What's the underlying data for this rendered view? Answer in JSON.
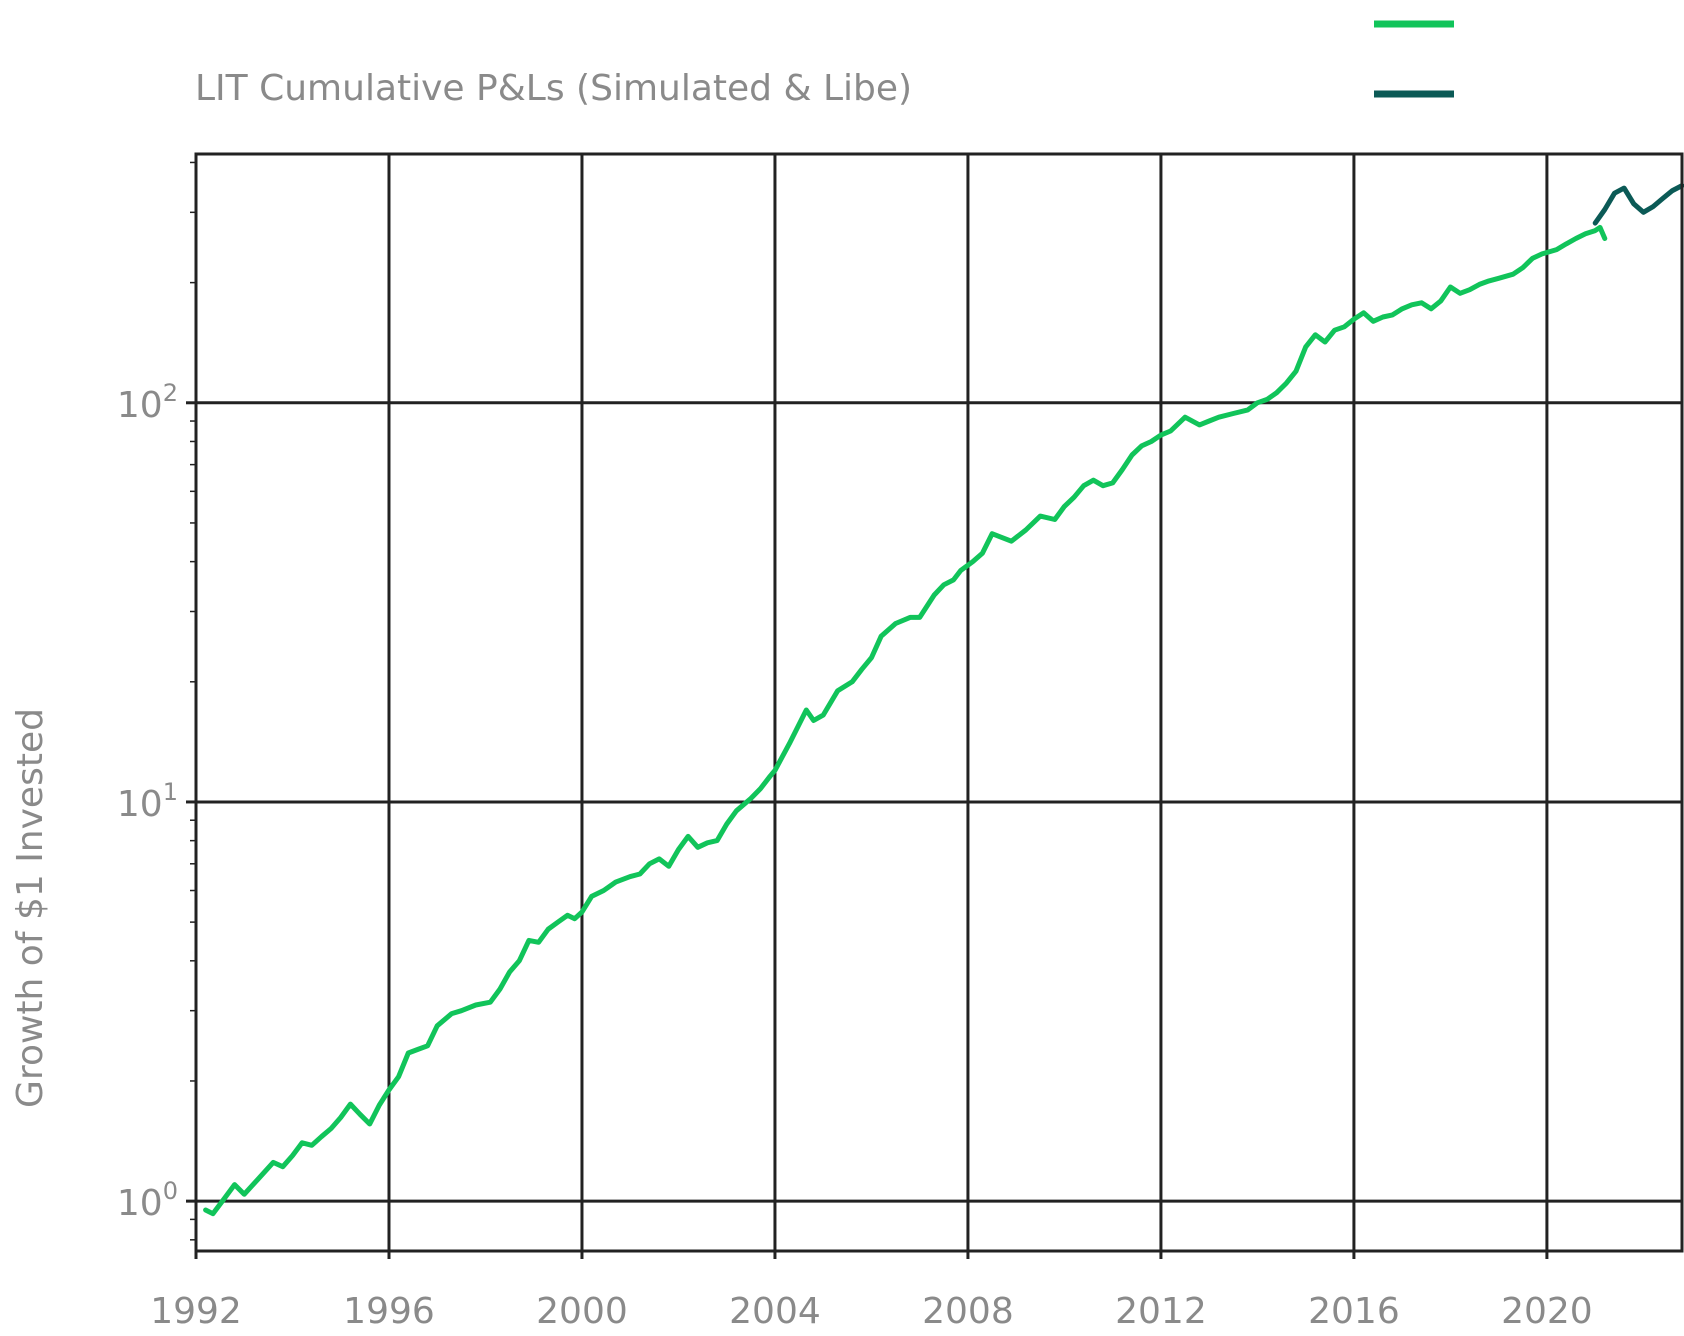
{
  "chart_data": {
    "type": "line",
    "title": "LIT Cumulative P&Ls (Simulated & Libe)",
    "ylabel": "Growth of $1 Invested",
    "xlabel": "",
    "yscale": "log",
    "grid": true,
    "legend": "top-right",
    "xlim": [
      1992,
      2022.8
    ],
    "ylim": [
      0.75,
      420
    ],
    "x_ticks": [
      1992,
      1996,
      2000,
      2004,
      2008,
      2012,
      2016,
      2020
    ],
    "x_tick_labels": [
      "1992",
      "1996",
      "2000",
      "2004",
      "2008",
      "2012",
      "2016",
      "2020"
    ],
    "y_ticks": [
      1,
      10,
      100
    ],
    "y_tick_labels": [
      {
        "base": "10",
        "exp": "0"
      },
      {
        "base": "10",
        "exp": "1"
      },
      {
        "base": "10",
        "exp": "2"
      }
    ],
    "series": [
      {
        "color": "#11c45a",
        "x": [
          1992.2,
          1992.35,
          1992.6,
          1992.8,
          1993.0,
          1993.3,
          1993.6,
          1993.8,
          1994.0,
          1994.2,
          1994.4,
          1994.6,
          1994.8,
          1995.0,
          1995.2,
          1995.4,
          1995.6,
          1995.8,
          1996.0,
          1996.2,
          1996.4,
          1996.6,
          1996.8,
          1997.0,
          1997.3,
          1997.5,
          1997.8,
          1998.1,
          1998.3,
          1998.5,
          1998.7,
          1998.9,
          1999.1,
          1999.3,
          1999.5,
          1999.7,
          1999.85,
          2000.0,
          2000.2,
          2000.45,
          2000.7,
          2001.0,
          2001.2,
          2001.4,
          2001.6,
          2001.8,
          2002.0,
          2002.2,
          2002.4,
          2002.6,
          2002.8,
          2003.0,
          2003.2,
          2003.5,
          2003.7,
          2003.9,
          2004.0,
          2004.3,
          2004.65,
          2004.8,
          2005.0,
          2005.3,
          2005.6,
          2005.8,
          2006.0,
          2006.2,
          2006.5,
          2006.8,
          2007.0,
          2007.3,
          2007.5,
          2007.7,
          2007.85,
          2008.1,
          2008.3,
          2008.5,
          2008.7,
          2008.9,
          2009.2,
          2009.5,
          2009.8,
          2010.0,
          2010.2,
          2010.4,
          2010.6,
          2010.8,
          2011.0,
          2011.2,
          2011.4,
          2011.6,
          2011.8,
          2012.0,
          2012.2,
          2012.5,
          2012.8,
          2013.0,
          2013.2,
          2013.5,
          2013.8,
          2014.0,
          2014.2,
          2014.4,
          2014.6,
          2014.8,
          2015.0,
          2015.2,
          2015.4,
          2015.6,
          2015.8,
          2016.0,
          2016.2,
          2016.4,
          2016.6,
          2016.8,
          2017.0,
          2017.2,
          2017.4,
          2017.6,
          2017.8,
          2018.0,
          2018.2,
          2018.4,
          2018.6,
          2018.8,
          2019.0,
          2019.3,
          2019.5,
          2019.7,
          2019.9,
          2020.0,
          2020.2,
          2020.4,
          2020.6,
          2020.8,
          2021.0,
          2021.1,
          2021.2
        ],
        "values": [
          0.95,
          0.93,
          1.02,
          1.1,
          1.04,
          1.14,
          1.25,
          1.22,
          1.3,
          1.4,
          1.38,
          1.45,
          1.52,
          1.62,
          1.75,
          1.65,
          1.56,
          1.74,
          1.9,
          2.05,
          2.35,
          2.4,
          2.45,
          2.75,
          2.95,
          3.0,
          3.1,
          3.15,
          3.4,
          3.75,
          4.0,
          4.5,
          4.45,
          4.8,
          5.0,
          5.2,
          5.1,
          5.3,
          5.8,
          6.0,
          6.3,
          6.5,
          6.6,
          7.0,
          7.2,
          6.9,
          7.6,
          8.2,
          7.7,
          7.9,
          8.0,
          8.8,
          9.5,
          10.2,
          10.8,
          11.6,
          12.0,
          14.0,
          17.0,
          16.0,
          16.5,
          19.0,
          20.0,
          21.5,
          23.0,
          26.0,
          28.0,
          29.0,
          29.0,
          33.0,
          35.0,
          36.0,
          38.0,
          40.0,
          42.0,
          47.0,
          46.0,
          45.0,
          48.0,
          52.0,
          51.0,
          55.0,
          58.0,
          62.0,
          64.0,
          62.0,
          63.0,
          68.0,
          74.0,
          78.0,
          80.0,
          83.0,
          85.0,
          92.0,
          88.0,
          90.0,
          92.0,
          94.0,
          96.0,
          100.0,
          102.0,
          106.0,
          112.0,
          120.0,
          138.0,
          148.0,
          142.0,
          152.0,
          155.0,
          162.0,
          168.0,
          160.0,
          164.0,
          166.0,
          172.0,
          176.0,
          178.0,
          172.0,
          180.0,
          195.0,
          188.0,
          192.0,
          198.0,
          202.0,
          205.0,
          210.0,
          218.0,
          230.0,
          236.0,
          238.0,
          242.0,
          250.0,
          258.0,
          265.0,
          270.0,
          275.0,
          258.0
        ]
      },
      {
        "color": "#0b5a56",
        "x": [
          2021.0,
          2021.2,
          2021.4,
          2021.6,
          2021.8,
          2022.0,
          2022.2,
          2022.4,
          2022.6,
          2022.8
        ],
        "values": [
          282.0,
          305.0,
          335.0,
          345.0,
          315.0,
          300.0,
          310.0,
          325.0,
          340.0,
          350.0
        ]
      }
    ]
  }
}
